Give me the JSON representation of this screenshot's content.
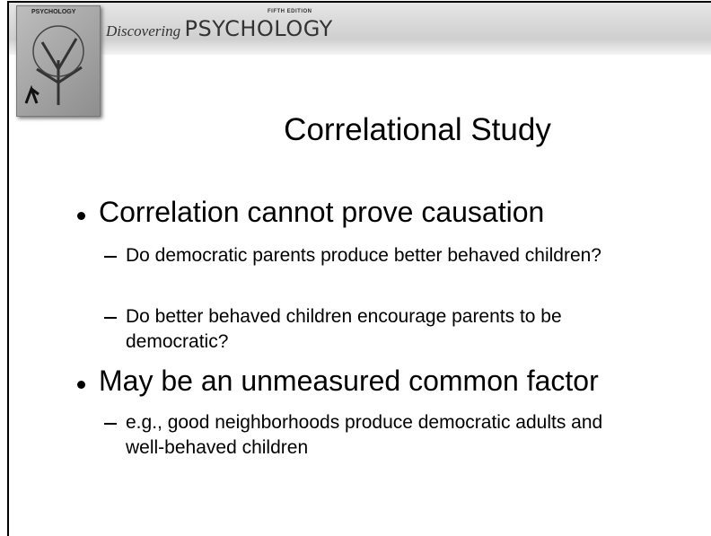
{
  "header": {
    "edition": "FIFTH EDITION",
    "brand_script": "Discovering",
    "brand": "PSYCHOLOGY"
  },
  "cover": {
    "title": "PSYCHOLOGY"
  },
  "slide": {
    "title": "Correlational Study",
    "bullets": [
      {
        "text": "Correlation cannot prove causation",
        "sub": [
          "Do democratic parents produce better behaved children?",
          "Do better behaved children encourage parents to be democratic?"
        ]
      },
      {
        "text": "May be an unmeasured common factor",
        "sub": [
          "e.g., good neighborhoods produce democratic adults and well-behaved children"
        ]
      }
    ]
  }
}
